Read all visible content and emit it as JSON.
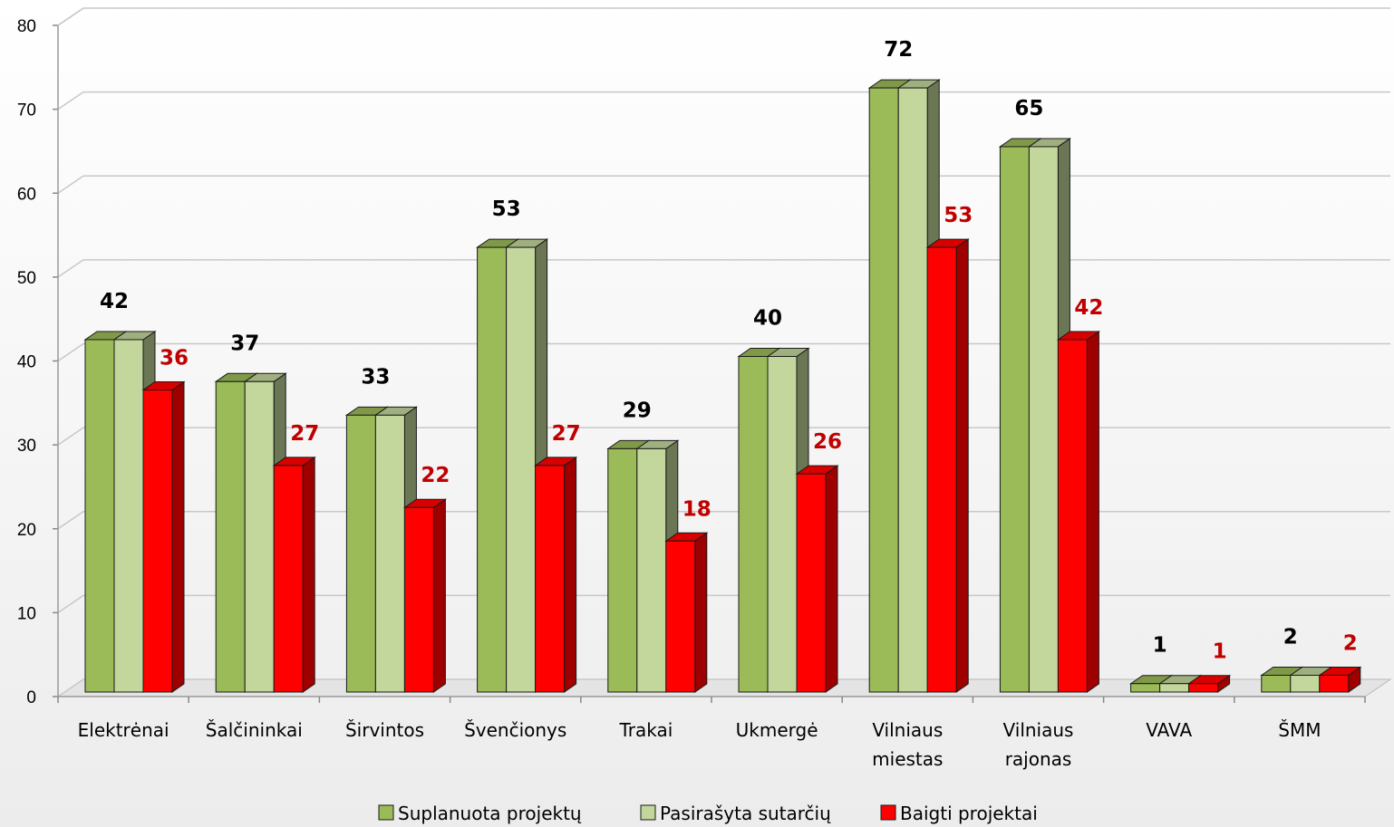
{
  "chart_data": {
    "type": "bar",
    "categories": [
      [
        "Elektrėnai"
      ],
      [
        "Šalčininkai"
      ],
      [
        "Širvintos"
      ],
      [
        "Švenčionys"
      ],
      [
        "Trakai"
      ],
      [
        "Ukmergė"
      ],
      [
        "Vilniaus",
        "miestas"
      ],
      [
        "Vilniaus",
        "rajonas"
      ],
      [
        "VAVA"
      ],
      [
        "ŠMM"
      ]
    ],
    "series": [
      {
        "name": "Suplanuota projektų",
        "values": [
          42,
          37,
          33,
          53,
          29,
          40,
          72,
          65,
          1,
          2
        ]
      },
      {
        "name": "Pasirašyta sutarčių",
        "values": [
          42,
          37,
          33,
          53,
          29,
          40,
          72,
          65,
          1,
          2
        ]
      },
      {
        "name": "Baigti projektai",
        "values": [
          36,
          27,
          22,
          27,
          18,
          26,
          53,
          42,
          1,
          2
        ]
      }
    ],
    "data_labels": {
      "planned": [
        "42",
        "37",
        "33",
        "53",
        "29",
        "40",
        "72",
        "65",
        "1",
        "2"
      ],
      "completed": [
        "36",
        "27",
        "22",
        "27",
        "18",
        "26",
        "53",
        "42",
        "1",
        "2"
      ]
    },
    "yticks": [
      "0",
      "10",
      "20",
      "30",
      "40",
      "50",
      "60",
      "70",
      "80"
    ],
    "ylim": [
      0,
      80
    ],
    "grid": true,
    "legend_position": "bottom",
    "three_d": true,
    "colors": {
      "planned": "#9bbb59",
      "signed": "#c3d69b",
      "completed": "#ff0000",
      "label_red": "#c00000"
    }
  }
}
